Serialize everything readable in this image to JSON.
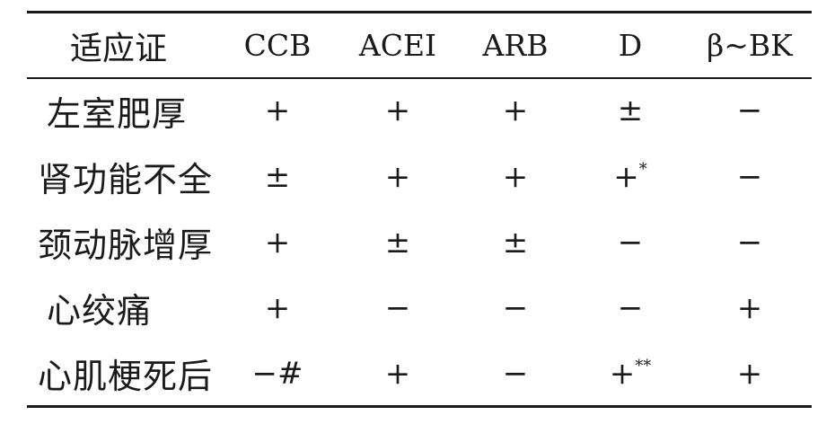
{
  "table": {
    "headers": [
      "适应证",
      "CCB",
      "ACEI",
      "ARB",
      "D",
      "β~BK"
    ],
    "rows": [
      {
        "label": "左室肥厚",
        "cells": [
          "+",
          "+",
          "+",
          "±",
          "−"
        ]
      },
      {
        "label": "肾功能不全",
        "cells": [
          "±",
          "+",
          "+",
          "+*",
          "−"
        ]
      },
      {
        "label": "颈动脉增厚",
        "cells": [
          "+",
          "±",
          "±",
          "−",
          "−"
        ]
      },
      {
        "label": "心绞痛",
        "cells": [
          "+",
          "−",
          "−",
          "−",
          "+"
        ]
      },
      {
        "label": "心肌梗死后",
        "cells": [
          "−#",
          "+",
          "−",
          "+**",
          "+"
        ]
      }
    ]
  }
}
